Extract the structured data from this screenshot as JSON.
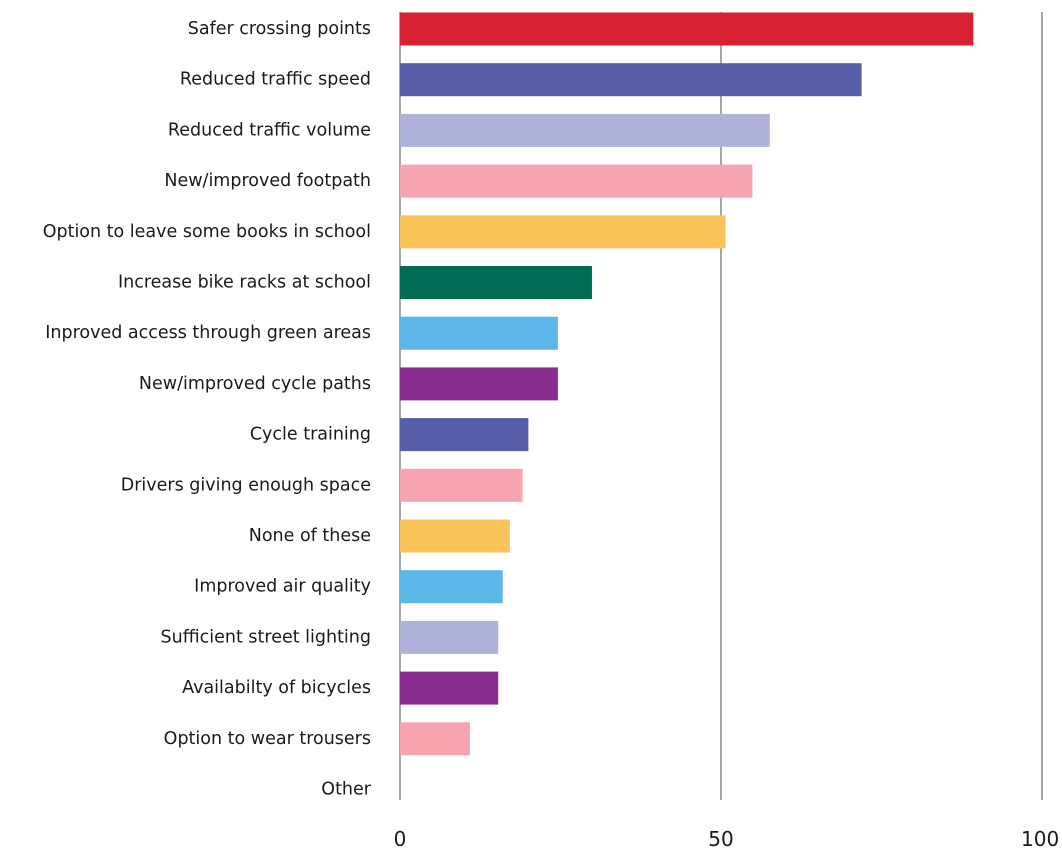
{
  "chart_data": {
    "type": "bar",
    "orientation": "horizontal",
    "title": "",
    "xlabel": "",
    "ylabel": "",
    "xlim": [
      0,
      100
    ],
    "grid": true,
    "legend": "none",
    "x_ticks": [
      "0",
      "50",
      "100"
    ],
    "x_tick_values": [
      0,
      50,
      100
    ],
    "categories": [
      "Safer crossing points",
      "Reduced traffic speed",
      "Reduced traffic volume",
      "New/improved footpath",
      "Option to leave some books in school",
      "Increase bike racks at school",
      "Inproved access through green areas",
      "New/improved cycle paths",
      "Cycle training",
      "Drivers giving enough space",
      "None of these",
      "Improved air quality",
      "Sufficient street lighting",
      "Availabilty of bicycles",
      "Option to wear trousers",
      "Other"
    ],
    "values": [
      89.3,
      71.9,
      57.6,
      54.9,
      50.7,
      29.9,
      24.6,
      24.6,
      20.0,
      19.1,
      17.1,
      16.0,
      15.3,
      15.3,
      10.9,
      0
    ],
    "colors": [
      "#d82234",
      "#565ea9",
      "#adb3db",
      "#f6a5b0",
      "#fcc45b",
      "#006b53",
      "#5db6e8",
      "#882c8f",
      "#565ea9",
      "#f6a5b0",
      "#fcc45b",
      "#5db6e8",
      "#adb3db",
      "#882c8f",
      "#f6a5b0",
      "#f6a5b0"
    ],
    "gridline_color": "#777777",
    "text_color": "#1a1a1a"
  }
}
